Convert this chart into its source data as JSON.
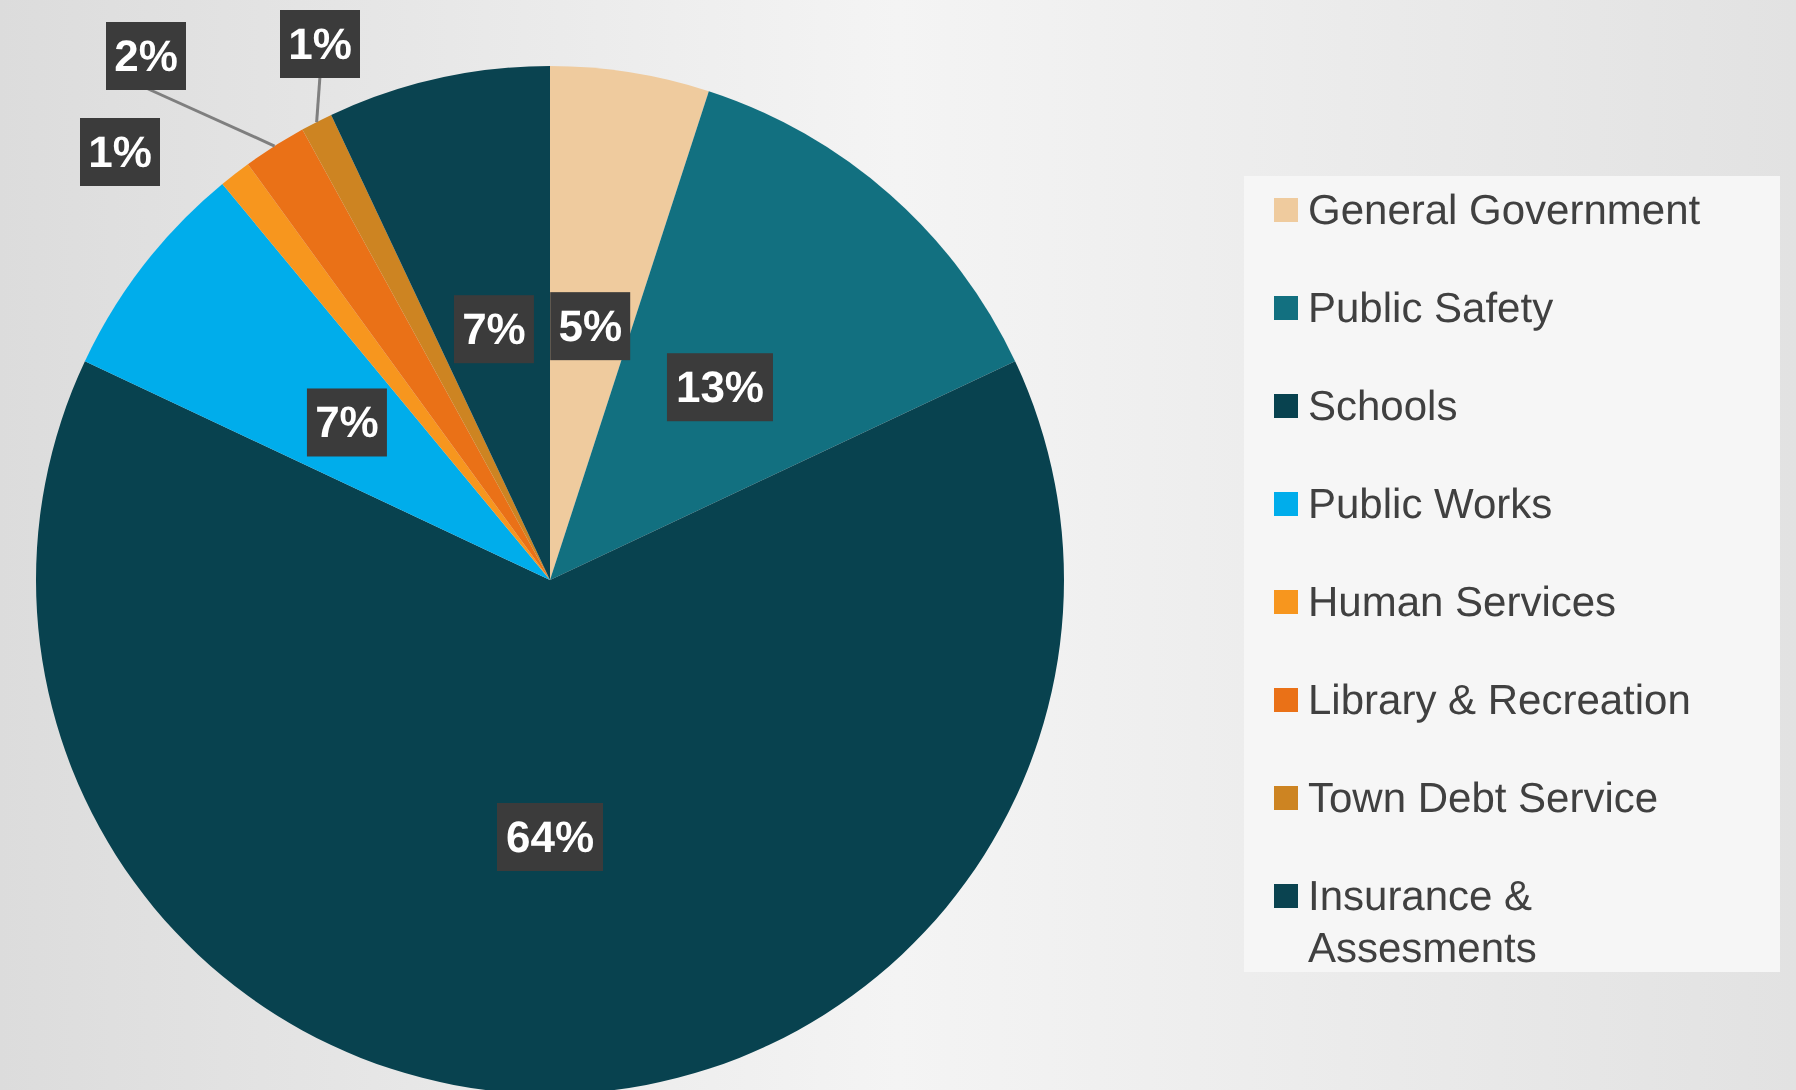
{
  "chart_data": {
    "type": "pie",
    "categories": [
      "General Government",
      "Public Safety",
      "Schools",
      "Public Works",
      "Human Services",
      "Library & Recreation",
      "Town Debt Service",
      "Insurance & Assesments"
    ],
    "values": [
      5,
      13,
      64,
      7,
      1,
      2,
      1,
      7
    ],
    "colors": [
      "#efcb9e",
      "#127080",
      "#08424f",
      "#00adeb",
      "#f7961e",
      "#ea7117",
      "#cd8422",
      "#0a4350"
    ],
    "value_labels": [
      "5%",
      "13%",
      "64%",
      "7%",
      "1%",
      "2%",
      "1%",
      "7%"
    ],
    "legend": "right"
  }
}
